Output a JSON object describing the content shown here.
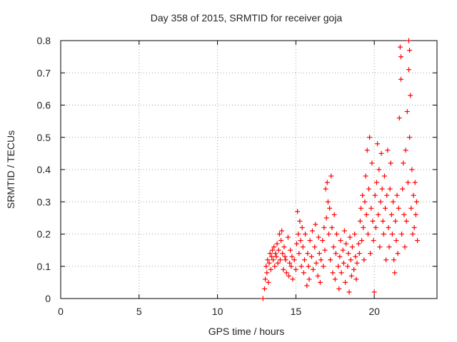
{
  "chart_data": {
    "type": "scatter",
    "title": "Day 358 of 2015, SRMTID for receiver goja",
    "xlabel": "GPS time / hours",
    "ylabel": "SRMTID / TECUs",
    "xlim": [
      0,
      24
    ],
    "ylim": [
      0,
      0.8
    ],
    "xticks": [
      0,
      5,
      10,
      15,
      20
    ],
    "xtick_labels": [
      "0",
      "5",
      "10",
      "15",
      "20"
    ],
    "yticks": [
      0,
      0.1,
      0.2,
      0.3,
      0.4,
      0.5,
      0.6,
      0.7,
      0.8
    ],
    "ytick_labels": [
      "0",
      "0.1",
      "0.2",
      "0.3",
      "0.4",
      "0.5",
      "0.6",
      "0.7",
      "0.8"
    ],
    "grid": true,
    "marker": "+",
    "color": "#ff0000",
    "series": [
      {
        "name": "SRMTID",
        "points": [
          [
            12.9,
            0.0
          ],
          [
            13.0,
            0.03
          ],
          [
            13.05,
            0.06
          ],
          [
            13.1,
            0.1
          ],
          [
            13.15,
            0.08
          ],
          [
            13.2,
            0.12
          ],
          [
            13.25,
            0.05
          ],
          [
            13.3,
            0.11
          ],
          [
            13.35,
            0.14
          ],
          [
            13.4,
            0.09
          ],
          [
            13.45,
            0.13
          ],
          [
            13.5,
            0.15
          ],
          [
            13.55,
            0.12
          ],
          [
            13.6,
            0.16
          ],
          [
            13.65,
            0.1
          ],
          [
            13.7,
            0.14
          ],
          [
            13.75,
            0.13
          ],
          [
            13.8,
            0.17
          ],
          [
            13.85,
            0.11
          ],
          [
            13.9,
            0.15
          ],
          [
            13.95,
            0.2
          ],
          [
            14.0,
            0.12
          ],
          [
            14.05,
            0.18
          ],
          [
            14.1,
            0.21
          ],
          [
            14.15,
            0.14
          ],
          [
            14.2,
            0.09
          ],
          [
            14.25,
            0.16
          ],
          [
            14.3,
            0.13
          ],
          [
            14.35,
            0.12
          ],
          [
            14.4,
            0.08
          ],
          [
            14.5,
            0.19
          ],
          [
            14.55,
            0.07
          ],
          [
            14.6,
            0.11
          ],
          [
            14.65,
            0.15
          ],
          [
            14.7,
            0.1
          ],
          [
            14.75,
            0.13
          ],
          [
            14.8,
            0.06
          ],
          [
            14.9,
            0.12
          ],
          [
            15.0,
            0.09
          ],
          [
            15.05,
            0.17
          ],
          [
            15.1,
            0.27
          ],
          [
            15.15,
            0.2
          ],
          [
            15.2,
            0.14
          ],
          [
            15.25,
            0.24
          ],
          [
            15.3,
            0.18
          ],
          [
            15.35,
            0.1
          ],
          [
            15.4,
            0.22
          ],
          [
            15.45,
            0.16
          ],
          [
            15.5,
            0.08
          ],
          [
            15.55,
            0.12
          ],
          [
            15.6,
            0.2
          ],
          [
            15.7,
            0.04
          ],
          [
            15.75,
            0.14
          ],
          [
            15.8,
            0.1
          ],
          [
            15.85,
            0.06
          ],
          [
            15.9,
            0.18
          ],
          [
            16.0,
            0.13
          ],
          [
            16.05,
            0.21
          ],
          [
            16.1,
            0.09
          ],
          [
            16.2,
            0.16
          ],
          [
            16.25,
            0.23
          ],
          [
            16.3,
            0.11
          ],
          [
            16.4,
            0.07
          ],
          [
            16.45,
            0.19
          ],
          [
            16.5,
            0.14
          ],
          [
            16.55,
            0.05
          ],
          [
            16.6,
            0.12
          ],
          [
            16.7,
            0.18
          ],
          [
            16.75,
            0.1
          ],
          [
            16.8,
            0.22
          ],
          [
            16.85,
            0.15
          ],
          [
            16.9,
            0.34
          ],
          [
            16.95,
            0.25
          ],
          [
            17.0,
            0.36
          ],
          [
            17.05,
            0.3
          ],
          [
            17.1,
            0.2
          ],
          [
            17.15,
            0.28
          ],
          [
            17.2,
            0.12
          ],
          [
            17.25,
            0.38
          ],
          [
            17.3,
            0.22
          ],
          [
            17.35,
            0.08
          ],
          [
            17.4,
            0.16
          ],
          [
            17.45,
            0.26
          ],
          [
            17.5,
            0.06
          ],
          [
            17.55,
            0.14
          ],
          [
            17.6,
            0.2
          ],
          [
            17.7,
            0.1
          ],
          [
            17.75,
            0.03
          ],
          [
            17.8,
            0.13
          ],
          [
            17.85,
            0.18
          ],
          [
            17.9,
            0.08
          ],
          [
            18.0,
            0.15
          ],
          [
            18.05,
            0.11
          ],
          [
            18.1,
            0.21
          ],
          [
            18.15,
            0.05
          ],
          [
            18.2,
            0.17
          ],
          [
            18.3,
            0.1
          ],
          [
            18.35,
            0.14
          ],
          [
            18.4,
            0.02
          ],
          [
            18.45,
            0.19
          ],
          [
            18.5,
            0.12
          ],
          [
            18.55,
            0.07
          ],
          [
            18.6,
            0.16
          ],
          [
            18.7,
            0.09
          ],
          [
            18.75,
            0.2
          ],
          [
            18.8,
            0.13
          ],
          [
            18.85,
            0.06
          ],
          [
            18.9,
            0.11
          ],
          [
            19.0,
            0.17
          ],
          [
            19.05,
            0.14
          ],
          [
            19.1,
            0.24
          ],
          [
            19.15,
            0.28
          ],
          [
            19.2,
            0.18
          ],
          [
            19.25,
            0.32
          ],
          [
            19.3,
            0.22
          ],
          [
            19.35,
            0.12
          ],
          [
            19.4,
            0.3
          ],
          [
            19.45,
            0.38
          ],
          [
            19.5,
            0.26
          ],
          [
            19.55,
            0.46
          ],
          [
            19.6,
            0.2
          ],
          [
            19.65,
            0.34
          ],
          [
            19.7,
            0.5
          ],
          [
            19.75,
            0.14
          ],
          [
            19.8,
            0.28
          ],
          [
            19.85,
            0.42
          ],
          [
            19.9,
            0.24
          ],
          [
            19.95,
            0.18
          ],
          [
            20.0,
            0.02
          ],
          [
            20.05,
            0.32
          ],
          [
            20.1,
            0.22
          ],
          [
            20.15,
            0.36
          ],
          [
            20.2,
            0.48
          ],
          [
            20.25,
            0.26
          ],
          [
            20.3,
            0.4
          ],
          [
            20.35,
            0.16
          ],
          [
            20.4,
            0.3
          ],
          [
            20.45,
            0.45
          ],
          [
            20.5,
            0.34
          ],
          [
            20.55,
            0.24
          ],
          [
            20.6,
            0.2
          ],
          [
            20.65,
            0.38
          ],
          [
            20.7,
            0.28
          ],
          [
            20.75,
            0.12
          ],
          [
            20.8,
            0.32
          ],
          [
            20.85,
            0.46
          ],
          [
            20.9,
            0.22
          ],
          [
            20.95,
            0.16
          ],
          [
            21.0,
            0.34
          ],
          [
            21.05,
            0.42
          ],
          [
            21.1,
            0.26
          ],
          [
            21.15,
            0.2
          ],
          [
            21.2,
            0.3
          ],
          [
            21.25,
            0.12
          ],
          [
            21.3,
            0.08
          ],
          [
            21.35,
            0.24
          ],
          [
            21.4,
            0.18
          ],
          [
            21.45,
            0.32
          ],
          [
            21.5,
            0.14
          ],
          [
            21.55,
            0.28
          ],
          [
            21.6,
            0.56
          ],
          [
            21.65,
            0.78
          ],
          [
            21.7,
            0.68
          ],
          [
            21.75,
            0.2
          ],
          [
            21.8,
            0.34
          ],
          [
            21.85,
            0.42
          ],
          [
            21.9,
            0.26
          ],
          [
            21.95,
            0.16
          ],
          [
            22.0,
            0.46
          ],
          [
            22.05,
            0.24
          ],
          [
            22.1,
            0.58
          ],
          [
            22.15,
            0.36
          ],
          [
            22.2,
            0.71
          ],
          [
            22.25,
            0.5
          ],
          [
            22.3,
            0.63
          ],
          [
            22.35,
            0.28
          ],
          [
            22.4,
            0.4
          ],
          [
            22.45,
            0.2
          ],
          [
            22.5,
            0.32
          ],
          [
            22.55,
            0.22
          ],
          [
            22.6,
            0.36
          ],
          [
            22.65,
            0.26
          ],
          [
            22.7,
            0.3
          ],
          [
            22.75,
            0.18
          ],
          [
            22.2,
            0.8
          ],
          [
            22.25,
            0.77
          ],
          [
            21.7,
            0.75
          ]
        ]
      }
    ]
  }
}
